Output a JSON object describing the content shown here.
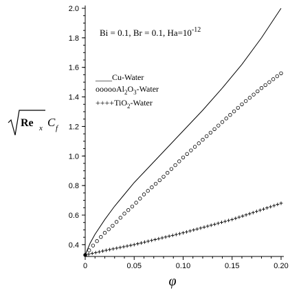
{
  "chart_data": {
    "type": "line",
    "xlim": [
      0,
      0.2
    ],
    "ylim": [
      0.32,
      2.0
    ],
    "x_ticks": [
      "0",
      "0.05",
      "0.10",
      "0.15",
      "0.20"
    ],
    "y_ticks": [
      "0.4",
      "0.6",
      "0.8",
      "1.0",
      "1.2",
      "1.4",
      "1.6",
      "1.8",
      "2.0"
    ],
    "xlabel": "φ",
    "ylabel": {
      "sqrt_arg": "Re",
      "sub1": "x",
      "after": "C",
      "sub2": "f"
    },
    "annotation": {
      "main": "Bi = 0.1, Br = 0.1, Ha=10",
      "superscript": "-12"
    },
    "legend": [
      {
        "marker": "____",
        "text_pre": "Cu-Water",
        "sub": "",
        "text_post": ""
      },
      {
        "marker": "ooooo",
        "text_pre": "Al",
        "sub": "2",
        "mid": "O",
        "sub2": "3",
        "text_post": "-Water"
      },
      {
        "marker": "++++",
        "text_pre": "TiO",
        "sub": "2",
        "mid": "",
        "sub2": "",
        "text_post": "-Water"
      }
    ],
    "legend_position": "upper-left",
    "series": [
      {
        "name": "Cu-Water",
        "style": "solid",
        "x": [
          0,
          0.005,
          0.01,
          0.02,
          0.03,
          0.04,
          0.05,
          0.06,
          0.08,
          0.1,
          0.12,
          0.14,
          0.16,
          0.18,
          0.2
        ],
        "y": [
          0.33,
          0.41,
          0.47,
          0.57,
          0.66,
          0.74,
          0.82,
          0.89,
          1.03,
          1.17,
          1.31,
          1.46,
          1.62,
          1.8,
          2.0
        ]
      },
      {
        "name": "Al2O3-Water",
        "style": "circle",
        "x": [
          0,
          0.005,
          0.01,
          0.02,
          0.03,
          0.04,
          0.05,
          0.06,
          0.08,
          0.1,
          0.12,
          0.14,
          0.16,
          0.18,
          0.2
        ],
        "y": [
          0.33,
          0.37,
          0.41,
          0.48,
          0.54,
          0.61,
          0.67,
          0.74,
          0.86,
          0.99,
          1.11,
          1.23,
          1.35,
          1.46,
          1.56
        ]
      },
      {
        "name": "TiO2-Water",
        "style": "plus",
        "x": [
          0,
          0.02,
          0.05,
          0.1,
          0.15,
          0.2
        ],
        "y": [
          0.33,
          0.36,
          0.4,
          0.48,
          0.57,
          0.68
        ]
      }
    ]
  }
}
